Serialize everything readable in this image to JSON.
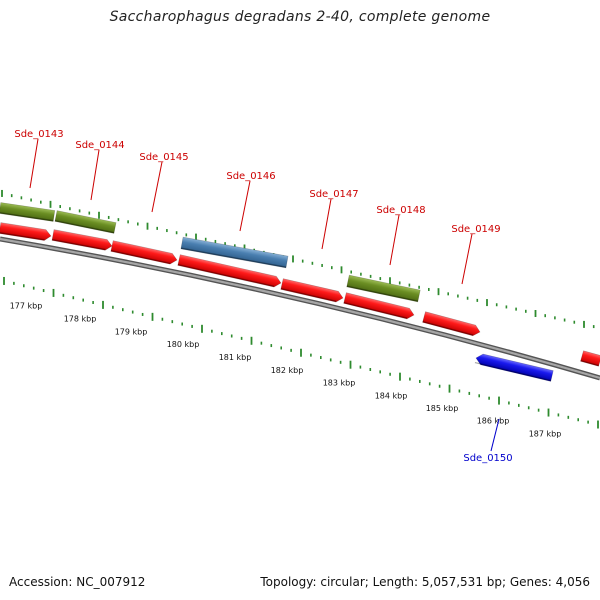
{
  "title": "Saccharophagus degradans 2-40, complete genome",
  "footer": {
    "accession": "Accession: NC_007912",
    "stats": "Topology: circular; Length: 5,057,531 bp; Genes: 4,056"
  },
  "colors": {
    "backbone": "#8c8c8c",
    "tick": "#2e8b2e",
    "forward_gene": "#ff1a1a",
    "reverse_gene": "#1a1aee",
    "olive_feature": "#6b8e23",
    "steel_feature": "#4a7fb0",
    "forward_label": "#cc0000",
    "reverse_label": "#0000cc"
  },
  "kbp_markers": [
    "177 kbp",
    "178 kbp",
    "179 kbp",
    "180 kbp",
    "181 kbp",
    "182 kbp",
    "183 kbp",
    "184 kbp",
    "185 kbp",
    "186 kbp",
    "187 kbp"
  ],
  "gene_labels": [
    {
      "name": "Sde_0143",
      "strand": "forward"
    },
    {
      "name": "Sde_0144",
      "strand": "forward"
    },
    {
      "name": "Sde_0145",
      "strand": "forward"
    },
    {
      "name": "Sde_0146",
      "strand": "forward"
    },
    {
      "name": "Sde_0147",
      "strand": "forward"
    },
    {
      "name": "Sde_0148",
      "strand": "forward"
    },
    {
      "name": "Sde_0149",
      "strand": "forward"
    },
    {
      "name": "Sde_0150",
      "strand": "reverse"
    }
  ]
}
